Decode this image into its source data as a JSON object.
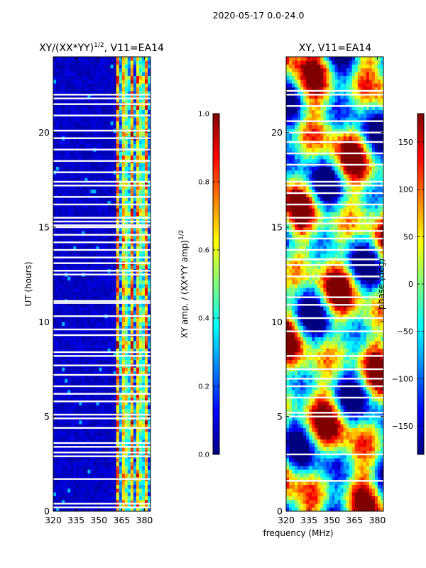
{
  "figure": {
    "suptitle": "2020-05-17 0.0-24.0",
    "xlabel_shared": "frequency (MHz)"
  },
  "chart_data": [
    {
      "type": "heatmap",
      "title_main": "XY/(XX*YY)",
      "title_sup": "1/2",
      "title_rest": ", V11=EA14",
      "ylabel": "UT (hours)",
      "xlim": [
        320,
        384
      ],
      "ylim": [
        0,
        24
      ],
      "xticks": [
        320,
        335,
        350,
        365,
        380
      ],
      "yticks": [
        0,
        5,
        10,
        15,
        20
      ],
      "xtick_labels": [
        "320",
        "335",
        "350",
        "365",
        "380"
      ],
      "ytick_labels": [
        "0",
        "5",
        "10",
        "15",
        "20"
      ],
      "colorbar": {
        "label_main": "XY amp. / (XX*YY amp)",
        "label_sup": "1/2",
        "range": [
          0.0,
          1.0
        ],
        "ticks": [
          0.0,
          0.2,
          0.4,
          0.6,
          0.8,
          1.0
        ],
        "tick_labels": [
          "0.0",
          "0.2",
          "0.4",
          "0.6",
          "0.8",
          "1.0"
        ],
        "colormap": "jet"
      },
      "colormap_note": "mostly low (~0.05) below 360 MHz, bright (0.3-0.8) striped band 360-383 MHz",
      "blank_rows_ut": [
        0.2,
        0.4,
        1.7,
        2.9,
        3.1,
        3.4,
        3.6,
        4.4,
        4.9,
        5.1,
        5.8,
        6.2,
        6.6,
        7.2,
        7.7,
        8.2,
        8.4,
        9.3,
        9.6,
        10.3,
        11.0,
        11.1,
        12.5,
        12.7,
        13.1,
        13.4,
        13.8,
        14.2,
        14.6,
        15.0,
        15.1,
        15.3,
        15.5,
        16.2,
        16.6,
        17.2,
        17.4,
        17.9,
        18.5,
        19.1,
        19.7,
        20.1,
        20.9,
        21.5,
        21.8,
        22.0
      ]
    },
    {
      "type": "heatmap",
      "title_main": "XY, V11=EA14",
      "xlim": [
        320,
        384
      ],
      "ylim": [
        0,
        24
      ],
      "xticks": [
        320,
        335,
        350,
        365,
        380
      ],
      "yticks": [
        0,
        5,
        10,
        15,
        20
      ],
      "xtick_labels": [
        "320",
        "335",
        "350",
        "365",
        "380"
      ],
      "ytick_labels": [
        "0",
        "5",
        "10",
        "15",
        "20"
      ],
      "colorbar": {
        "label_main": "phase (deg)",
        "range": [
          -180,
          180
        ],
        "ticks": [
          -150,
          -100,
          -50,
          0,
          50,
          100,
          150
        ],
        "tick_labels": [
          "−150",
          "−100",
          "−50",
          "0",
          "50",
          "100",
          "150"
        ],
        "colormap": "jet"
      },
      "colormap_note": "phase varies across full range with large patches of red/orange/yellow and cyan/green",
      "blank_rows_ut": [
        1.6,
        3.0,
        5.0,
        5.2,
        6.0,
        6.6,
        7.0,
        7.5,
        8.2,
        9.5,
        10.2,
        10.9,
        11.3,
        12.4,
        13.0,
        13.3,
        13.8,
        14.4,
        14.8,
        15.2,
        15.5,
        16.2,
        16.8,
        17.2,
        17.4,
        18.3,
        18.9,
        19.5,
        20.0,
        20.6,
        21.4,
        22.0,
        22.2
      ]
    }
  ],
  "colors": {
    "jet_stops": [
      "#00007f",
      "#0000ff",
      "#007fff",
      "#00ffff",
      "#7fff7f",
      "#ffff00",
      "#ff7f00",
      "#ff0000",
      "#7f0000"
    ]
  }
}
